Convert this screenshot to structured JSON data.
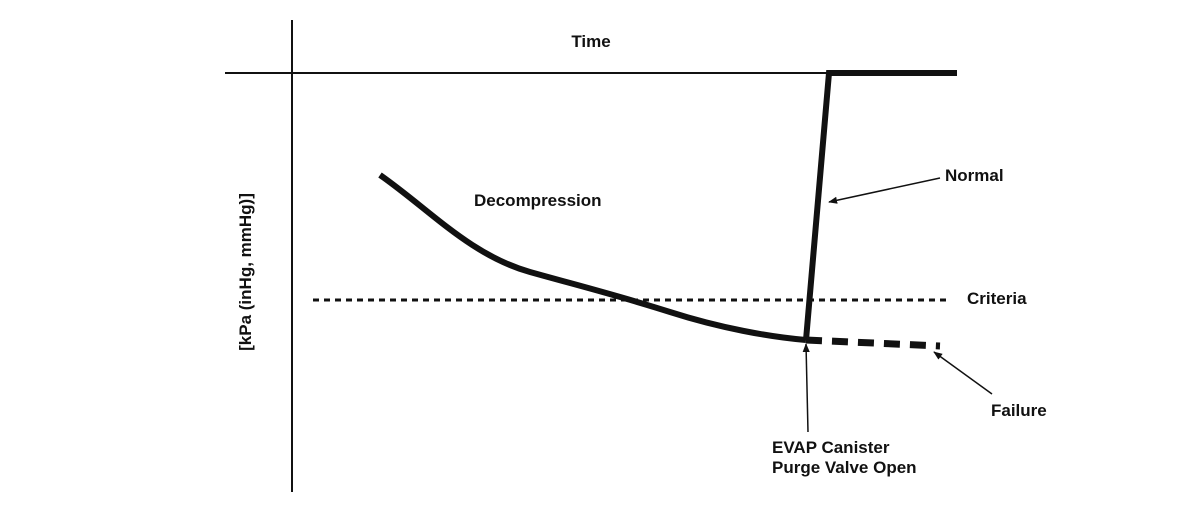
{
  "x_axis_label": "Time",
  "y_axis_label": "[kPa (inHg, mmHg)]",
  "labels": {
    "decompression": "Decompression",
    "normal": "Normal",
    "criteria": "Criteria",
    "failure": "Failure",
    "valve_open": [
      "EVAP Canister",
      "Purge Valve Open"
    ]
  }
}
